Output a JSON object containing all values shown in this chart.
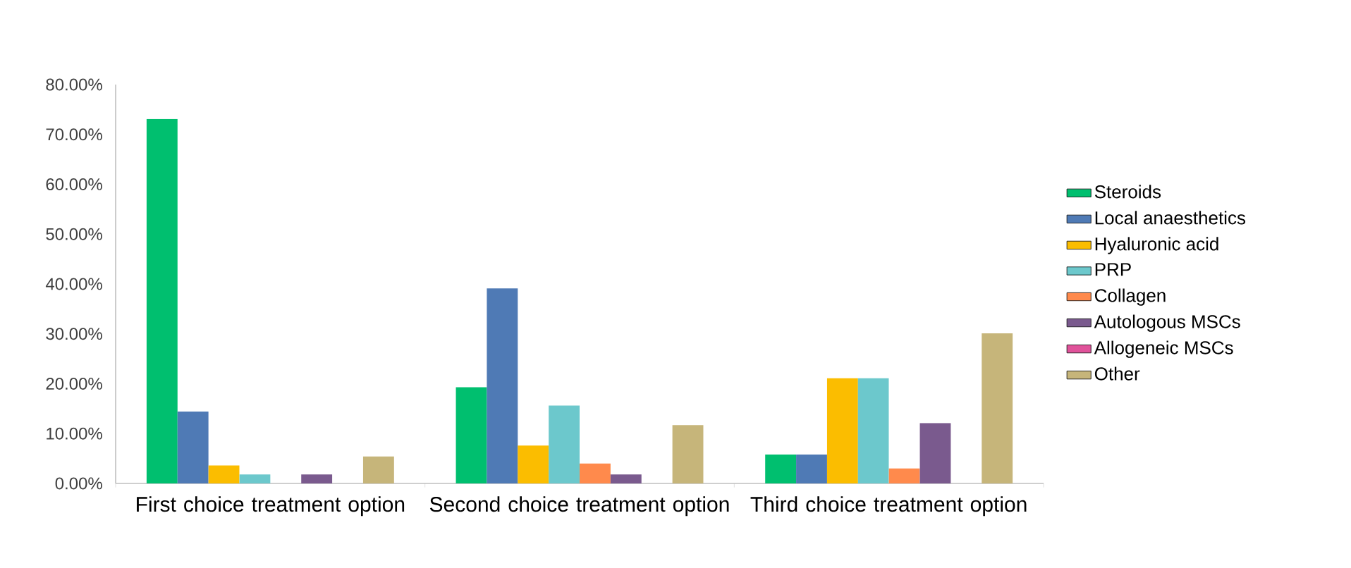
{
  "chart_data": {
    "type": "bar",
    "categories": [
      "First choice treatment option",
      "Second choice treatment option",
      "Third choice treatment option"
    ],
    "series": [
      {
        "name": "Steroids",
        "color": "#00bf6f",
        "values": [
          73.1,
          19.3,
          5.8
        ]
      },
      {
        "name": "Local anaesthetics",
        "color": "#4f7ab5",
        "values": [
          14.4,
          39.1,
          5.8
        ]
      },
      {
        "name": "Hyaluronic acid",
        "color": "#fbbd00",
        "values": [
          3.6,
          7.6,
          21.1
        ]
      },
      {
        "name": "PRP",
        "color": "#6cc8cc",
        "values": [
          1.8,
          15.6,
          21.1
        ]
      },
      {
        "name": "Collagen",
        "color": "#ff8a4c",
        "values": [
          0,
          4.0,
          3.0
        ]
      },
      {
        "name": "Autologous MSCs",
        "color": "#7a5a8e",
        "values": [
          1.8,
          1.8,
          12.1
        ]
      },
      {
        "name": "Allogeneic MSCs",
        "color": "#e0529a",
        "values": [
          0,
          0,
          0
        ]
      },
      {
        "name": "Other",
        "color": "#c6b57a",
        "values": [
          5.4,
          11.7,
          30.1
        ]
      }
    ],
    "ylim": [
      0,
      80
    ],
    "yticks": [
      {
        "value": 0,
        "label": "0.00%"
      },
      {
        "value": 10,
        "label": "10.00%"
      },
      {
        "value": 20,
        "label": "20.00%"
      },
      {
        "value": 30,
        "label": "30.00%"
      },
      {
        "value": 40,
        "label": "40.00%"
      },
      {
        "value": 50,
        "label": "50.00%"
      },
      {
        "value": 60,
        "label": "60.00%"
      },
      {
        "value": 70,
        "label": "70.00%"
      },
      {
        "value": 80,
        "label": "80.00%"
      }
    ],
    "grid": false,
    "legend": "right"
  }
}
